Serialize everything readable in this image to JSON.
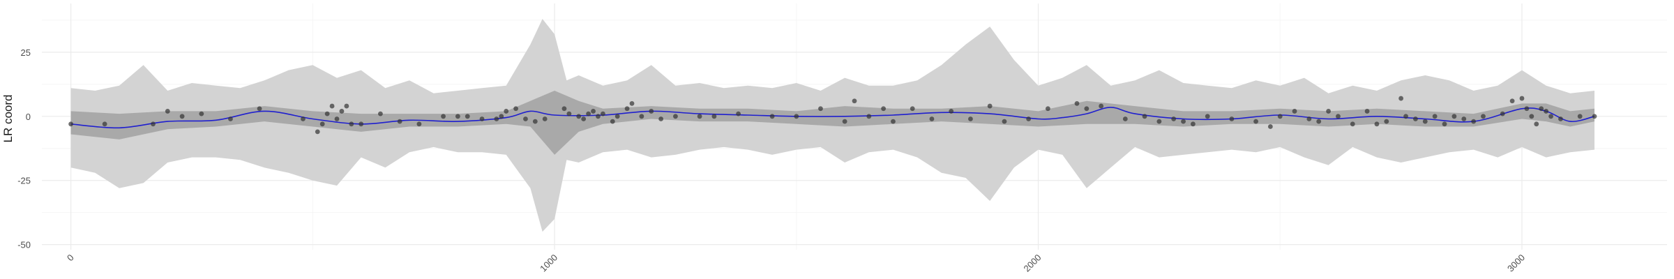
{
  "chart_data": {
    "type": "line",
    "title": "",
    "xlabel": "",
    "ylabel": "LR coord",
    "xlim": [
      -60,
      3300
    ],
    "ylim": [
      -52,
      44
    ],
    "x_ticks": [
      0,
      1000,
      2000,
      3000
    ],
    "x_minor_ticks": [
      500,
      1500,
      2500
    ],
    "y_ticks": [
      -50,
      -25,
      0,
      25
    ],
    "y_minor_ticks": [
      -37.5,
      -12.5,
      12.5,
      37.5
    ],
    "x_tick_labels": [
      "0",
      "1000",
      "2000",
      "3000"
    ],
    "y_tick_labels": [
      "-50",
      "-25",
      "0",
      "25"
    ],
    "grid": true,
    "legend": "none",
    "colors": {
      "outer_band": "#d3d3d3",
      "inner_band": "#a9a9a9",
      "trend_line": "#1f1fcf",
      "points": "#333333",
      "grid_major": "#ebebeb",
      "grid_minor": "#f5f5f5"
    },
    "trend": {
      "x": [
        0,
        100,
        200,
        300,
        400,
        500,
        600,
        700,
        800,
        900,
        950,
        1000,
        1100,
        1200,
        1300,
        1400,
        1500,
        1600,
        1700,
        1800,
        1900,
        2000,
        2050,
        2100,
        2150,
        2200,
        2300,
        2400,
        2500,
        2600,
        2700,
        2800,
        2900,
        3000,
        3050,
        3100,
        3150
      ],
      "y": [
        -3,
        -4.5,
        -2,
        -1.5,
        2,
        -1,
        -3,
        -1.5,
        -2,
        -0.5,
        2,
        0.5,
        0.5,
        2,
        1,
        0.5,
        0,
        0,
        0.5,
        1.5,
        1,
        -1,
        -0.5,
        1,
        3.5,
        1,
        -1,
        -1,
        0.5,
        -1,
        0,
        -1,
        -2,
        3,
        2,
        -2,
        0
      ]
    },
    "inner_band": {
      "x": [
        0,
        100,
        200,
        300,
        400,
        500,
        600,
        700,
        800,
        900,
        950,
        1000,
        1050,
        1100,
        1200,
        1300,
        1400,
        1500,
        1600,
        1700,
        1800,
        1900,
        2000,
        2100,
        2200,
        2300,
        2400,
        2500,
        2600,
        2700,
        2800,
        2900,
        3000,
        3050,
        3100,
        3150
      ],
      "upper": [
        2,
        1,
        2,
        2,
        4,
        2,
        1,
        1,
        1,
        2,
        6,
        10,
        6,
        3,
        4,
        3,
        3,
        2,
        4,
        3,
        3,
        4,
        2,
        6,
        4,
        2,
        2,
        3,
        2,
        3,
        2,
        1,
        5,
        5,
        2,
        3
      ],
      "lower": [
        -7,
        -9,
        -5,
        -4,
        -2,
        -4,
        -6,
        -4,
        -4,
        -3,
        -4,
        -15,
        -6,
        -3,
        -1,
        -2,
        -2,
        -3,
        -4,
        -3,
        -2,
        -3,
        -4,
        -3,
        -3,
        -4,
        -3,
        -3,
        -4,
        -3,
        -4,
        -4,
        -1,
        -2,
        -4,
        -2
      ]
    },
    "outer_band": {
      "x": [
        0,
        50,
        100,
        150,
        200,
        250,
        300,
        350,
        400,
        450,
        500,
        550,
        600,
        650,
        700,
        750,
        800,
        850,
        900,
        950,
        975,
        1000,
        1025,
        1050,
        1100,
        1150,
        1200,
        1250,
        1300,
        1350,
        1400,
        1450,
        1500,
        1550,
        1600,
        1650,
        1700,
        1750,
        1800,
        1850,
        1900,
        1950,
        2000,
        2050,
        2100,
        2150,
        2200,
        2250,
        2300,
        2350,
        2400,
        2450,
        2500,
        2550,
        2600,
        2650,
        2700,
        2750,
        2800,
        2850,
        2900,
        2950,
        3000,
        3050,
        3100,
        3150
      ],
      "upper": [
        11,
        10,
        12,
        20,
        10,
        13,
        12,
        11,
        14,
        18,
        20,
        15,
        18,
        11,
        14,
        9,
        10,
        11,
        12,
        28,
        38,
        32,
        14,
        16,
        12,
        14,
        20,
        12,
        13,
        11,
        12,
        11,
        13,
        10,
        15,
        12,
        12,
        14,
        20,
        28,
        35,
        22,
        12,
        15,
        20,
        12,
        14,
        18,
        13,
        12,
        11,
        14,
        12,
        15,
        9,
        12,
        10,
        14,
        16,
        14,
        10,
        12,
        18,
        12,
        9,
        10
      ],
      "lower": [
        -20,
        -22,
        -28,
        -26,
        -18,
        -16,
        -16,
        -17,
        -20,
        -22,
        -25,
        -27,
        -16,
        -20,
        -14,
        -12,
        -14,
        -14,
        -15,
        -28,
        -45,
        -40,
        -17,
        -18,
        -14,
        -13,
        -16,
        -15,
        -13,
        -12,
        -13,
        -15,
        -13,
        -12,
        -18,
        -14,
        -13,
        -16,
        -22,
        -24,
        -33,
        -20,
        -13,
        -15,
        -28,
        -20,
        -12,
        -16,
        -15,
        -14,
        -13,
        -14,
        -12,
        -16,
        -19,
        -12,
        -16,
        -18,
        -16,
        -14,
        -13,
        -16,
        -12,
        -16,
        -14,
        -13
      ]
    },
    "points": {
      "x": [
        0,
        70,
        170,
        200,
        230,
        270,
        330,
        390,
        480,
        510,
        520,
        530,
        540,
        550,
        560,
        570,
        580,
        600,
        640,
        680,
        720,
        770,
        800,
        820,
        850,
        880,
        890,
        900,
        920,
        940,
        960,
        980,
        1020,
        1030,
        1050,
        1060,
        1070,
        1080,
        1090,
        1100,
        1120,
        1130,
        1150,
        1160,
        1180,
        1200,
        1220,
        1250,
        1300,
        1330,
        1380,
        1450,
        1500,
        1550,
        1600,
        1620,
        1650,
        1680,
        1700,
        1740,
        1780,
        1820,
        1860,
        1900,
        1930,
        1980,
        2020,
        2080,
        2100,
        2130,
        2180,
        2220,
        2250,
        2280,
        2300,
        2320,
        2350,
        2400,
        2450,
        2480,
        2500,
        2530,
        2560,
        2580,
        2600,
        2620,
        2650,
        2680,
        2700,
        2720,
        2750,
        2760,
        2780,
        2800,
        2820,
        2840,
        2860,
        2880,
        2900,
        2920,
        2960,
        2980,
        3000,
        3010,
        3020,
        3030,
        3040,
        3050,
        3060,
        3080,
        3120,
        3150
      ],
      "y": [
        -3,
        -3,
        -3,
        2,
        0,
        1,
        -1,
        3,
        -1,
        -6,
        -3,
        1,
        4,
        -1,
        2,
        4,
        -3,
        -3,
        1,
        -2,
        -3,
        0,
        0,
        0,
        -1,
        -1,
        0,
        2,
        3,
        -1,
        -2,
        -1,
        3,
        1,
        0,
        -1,
        1,
        2,
        0,
        1,
        -2,
        0,
        3,
        5,
        0,
        2,
        -1,
        0,
        0,
        0,
        1,
        0,
        0,
        3,
        -2,
        6,
        0,
        3,
        -2,
        3,
        -1,
        2,
        -1,
        4,
        -2,
        -1,
        3,
        5,
        3,
        4,
        -1,
        0,
        -2,
        -1,
        -2,
        -3,
        0,
        -1,
        -2,
        -4,
        0,
        2,
        -1,
        -2,
        2,
        0,
        -3,
        2,
        -3,
        -2,
        7,
        0,
        -1,
        -2,
        0,
        -3,
        0,
        -1,
        -2,
        0,
        1,
        6,
        7,
        3,
        0,
        -3,
        3,
        2,
        0,
        -1,
        0,
        0
      ]
    }
  }
}
